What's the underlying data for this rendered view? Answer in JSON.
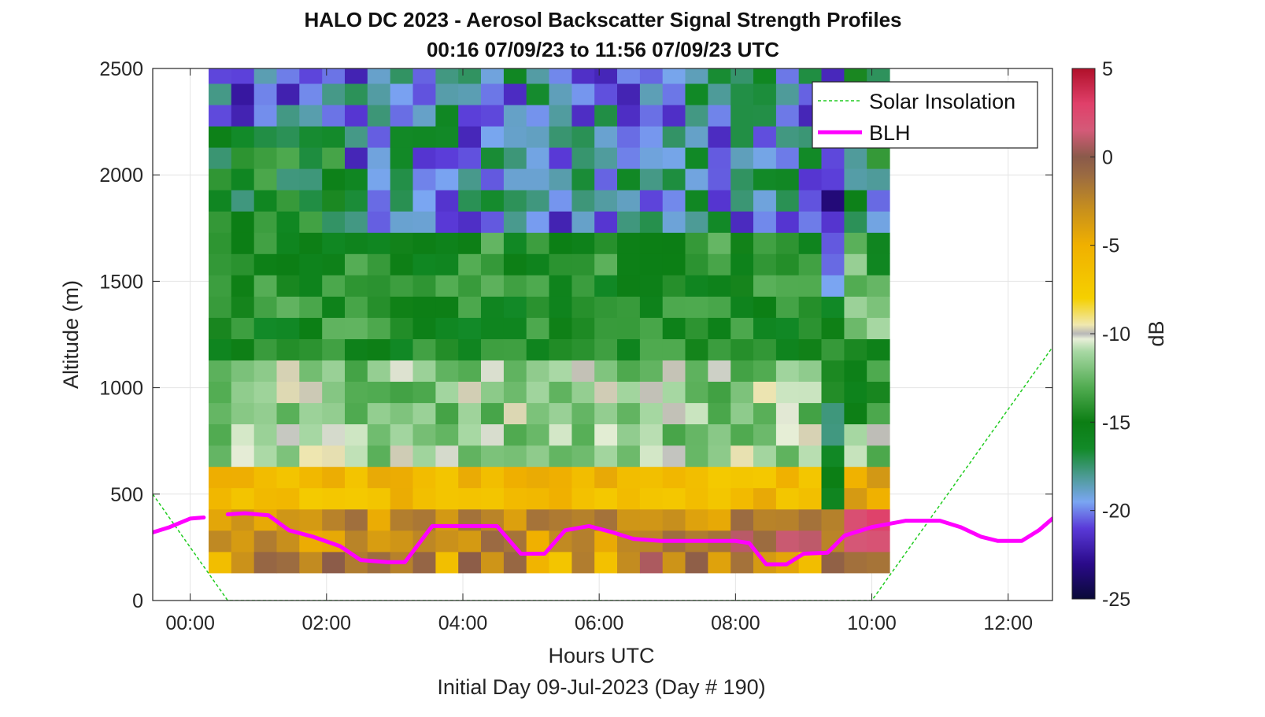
{
  "chart_data": {
    "type": "heatmap",
    "title": "HALO DC 2023 - Aerosol Backscatter Signal Strength Profiles",
    "subtitle": "00:16 07/09/23 to 11:56 07/09/23  UTC",
    "xlabel": "Hours UTC",
    "xlabel2": "Initial Day 09-Jul-2023 (Day # 190)",
    "ylabel": "Altitude (m)",
    "colorbar_label": "dB",
    "xlim": [
      -0.55,
      12.65
    ],
    "ylim": [
      0,
      2500
    ],
    "clim": [
      -25,
      5
    ],
    "grid": true,
    "legend_position": "top-right",
    "x_ticks": [
      {
        "v": 0,
        "label": "00:00"
      },
      {
        "v": 2,
        "label": "02:00"
      },
      {
        "v": 4,
        "label": "04:00"
      },
      {
        "v": 6,
        "label": "06:00"
      },
      {
        "v": 8,
        "label": "08:00"
      },
      {
        "v": 10,
        "label": "10:00"
      },
      {
        "v": 12,
        "label": "12:00"
      }
    ],
    "y_ticks": [
      {
        "v": 0,
        "label": "0"
      },
      {
        "v": 500,
        "label": "500"
      },
      {
        "v": 1000,
        "label": "1000"
      },
      {
        "v": 1500,
        "label": "1500"
      },
      {
        "v": 2000,
        "label": "2000"
      },
      {
        "v": 2500,
        "label": "2500"
      }
    ],
    "colorbar_ticks": [
      {
        "v": 5,
        "label": "5"
      },
      {
        "v": 0,
        "label": "0"
      },
      {
        "v": -5,
        "label": "-5"
      },
      {
        "v": -10,
        "label": "-10"
      },
      {
        "v": -15,
        "label": "-15"
      },
      {
        "v": -20,
        "label": "-20"
      },
      {
        "v": -25,
        "label": "-25"
      }
    ],
    "colormap": [
      {
        "v": -25,
        "c": "#0a0a38"
      },
      {
        "v": -23,
        "c": "#2a0a8a"
      },
      {
        "v": -21,
        "c": "#5a3ad8"
      },
      {
        "v": -19.5,
        "c": "#7aa6f2"
      },
      {
        "v": -18,
        "c": "#4a9a90"
      },
      {
        "v": -16.5,
        "c": "#128a28"
      },
      {
        "v": -15,
        "c": "#0c7e14"
      },
      {
        "v": -13,
        "c": "#52ac52"
      },
      {
        "v": -11,
        "c": "#a8d8a4"
      },
      {
        "v": -10.3,
        "c": "#e8efd8"
      },
      {
        "v": -10,
        "c": "#b8b8b8"
      },
      {
        "v": -9.5,
        "c": "#f0e8b0"
      },
      {
        "v": -8,
        "c": "#f5d000"
      },
      {
        "v": -5,
        "c": "#f0b000"
      },
      {
        "v": -3,
        "c": "#c8901c"
      },
      {
        "v": -1,
        "c": "#9a6a42"
      },
      {
        "v": 0,
        "c": "#8a5a4a"
      },
      {
        "v": 1.5,
        "c": "#d45a78"
      },
      {
        "v": 3,
        "c": "#e0406a"
      },
      {
        "v": 5,
        "c": "#b0102a"
      }
    ],
    "heatmap": {
      "x_start": 0.27,
      "x_step": 0.333,
      "columns": 30,
      "y_start": 130,
      "y_step": 100,
      "rows": 24,
      "unit": "dB",
      "note": "approximate column profiles read bottom to top"
    },
    "series": [
      {
        "name": "Solar Insolation",
        "style": "dashed",
        "color": "#22cc22",
        "x": [
          -0.55,
          0.55,
          10.0,
          12.65
        ],
        "y": [
          500,
          0,
          0,
          1190
        ]
      },
      {
        "name": "BLH",
        "style": "solid",
        "color": "#ff00ff",
        "segments": [
          {
            "x": [
              -0.55,
              -0.3,
              0.0,
              0.2
            ],
            "y": [
              320,
              345,
              385,
              390
            ]
          },
          {
            "x": [
              0.55,
              0.8,
              1.15,
              1.45,
              1.8,
              2.2,
              2.5,
              2.9,
              3.15,
              3.55,
              3.9,
              4.2,
              4.5,
              4.85,
              5.2,
              5.5,
              5.85,
              6.2,
              6.5,
              6.9,
              7.3,
              7.65,
              8.0,
              8.2,
              8.45,
              8.75,
              9.0,
              9.35,
              9.6,
              10.0,
              10.5,
              11.0,
              11.3,
              11.6,
              11.85,
              12.2,
              12.45,
              12.65
            ],
            "y": [
              405,
              410,
              400,
              330,
              300,
              255,
              190,
              180,
              180,
              350,
              350,
              350,
              350,
              220,
              220,
              330,
              350,
              320,
              290,
              280,
              280,
              280,
              280,
              270,
              170,
              170,
              220,
              225,
              305,
              345,
              375,
              375,
              345,
              300,
              280,
              280,
              330,
              385
            ]
          }
        ]
      }
    ]
  }
}
